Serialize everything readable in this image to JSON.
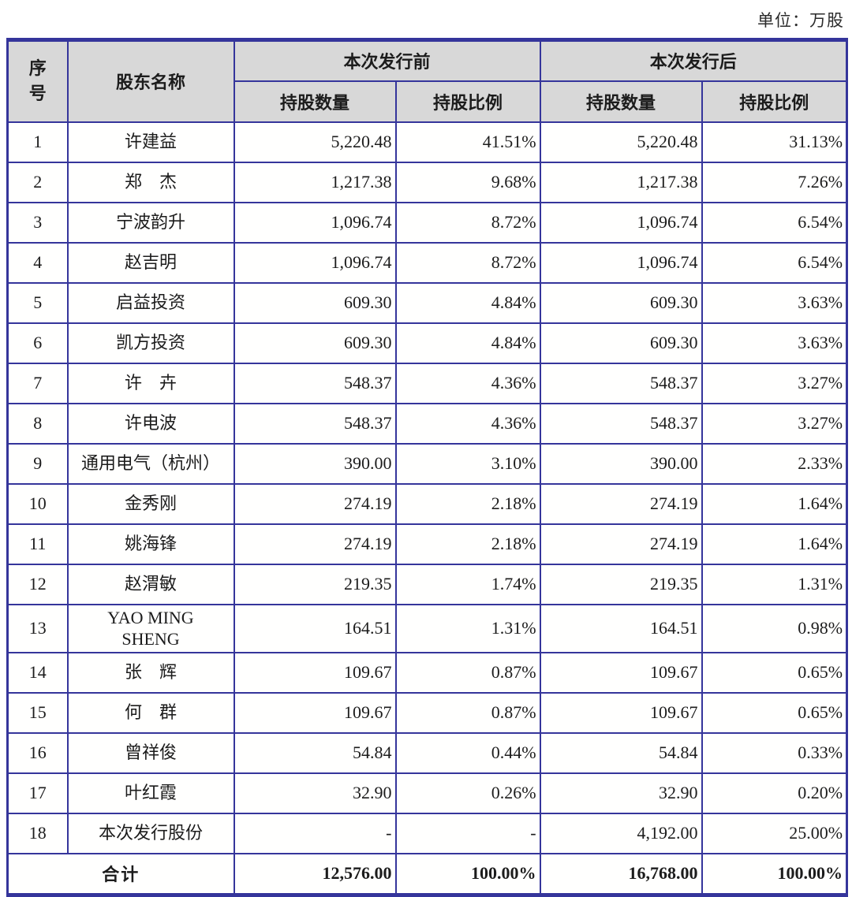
{
  "unit_label": "单位：万股",
  "colors": {
    "table_border": "#35359b",
    "header_bg": "#d8d8d8",
    "text": "#1c1c1c"
  },
  "table": {
    "header": {
      "seq": "序号",
      "shareholder": "股东名称",
      "pre_group": "本次发行前",
      "post_group": "本次发行后",
      "qty": "持股数量",
      "pct": "持股比例"
    },
    "rows": [
      {
        "seq": "1",
        "name": "许建益",
        "pre_qty": "5,220.48",
        "pre_pct": "41.51%",
        "post_qty": "5,220.48",
        "post_pct": "31.13%"
      },
      {
        "seq": "2",
        "name": "郑　杰",
        "pre_qty": "1,217.38",
        "pre_pct": "9.68%",
        "post_qty": "1,217.38",
        "post_pct": "7.26%"
      },
      {
        "seq": "3",
        "name": "宁波韵升",
        "pre_qty": "1,096.74",
        "pre_pct": "8.72%",
        "post_qty": "1,096.74",
        "post_pct": "6.54%"
      },
      {
        "seq": "4",
        "name": "赵吉明",
        "pre_qty": "1,096.74",
        "pre_pct": "8.72%",
        "post_qty": "1,096.74",
        "post_pct": "6.54%"
      },
      {
        "seq": "5",
        "name": "启益投资",
        "pre_qty": "609.30",
        "pre_pct": "4.84%",
        "post_qty": "609.30",
        "post_pct": "3.63%"
      },
      {
        "seq": "6",
        "name": "凯方投资",
        "pre_qty": "609.30",
        "pre_pct": "4.84%",
        "post_qty": "609.30",
        "post_pct": "3.63%"
      },
      {
        "seq": "7",
        "name": "许　卉",
        "pre_qty": "548.37",
        "pre_pct": "4.36%",
        "post_qty": "548.37",
        "post_pct": "3.27%"
      },
      {
        "seq": "8",
        "name": "许电波",
        "pre_qty": "548.37",
        "pre_pct": "4.36%",
        "post_qty": "548.37",
        "post_pct": "3.27%"
      },
      {
        "seq": "9",
        "name": "通用电气（杭州）",
        "pre_qty": "390.00",
        "pre_pct": "3.10%",
        "post_qty": "390.00",
        "post_pct": "2.33%"
      },
      {
        "seq": "10",
        "name": "金秀刚",
        "pre_qty": "274.19",
        "pre_pct": "2.18%",
        "post_qty": "274.19",
        "post_pct": "1.64%"
      },
      {
        "seq": "11",
        "name": "姚海锋",
        "pre_qty": "274.19",
        "pre_pct": "2.18%",
        "post_qty": "274.19",
        "post_pct": "1.64%"
      },
      {
        "seq": "12",
        "name": "赵渭敏",
        "pre_qty": "219.35",
        "pre_pct": "1.74%",
        "post_qty": "219.35",
        "post_pct": "1.31%"
      },
      {
        "seq": "13",
        "name": "YAO MING\nSHENG",
        "pre_qty": "164.51",
        "pre_pct": "1.31%",
        "post_qty": "164.51",
        "post_pct": "0.98%"
      },
      {
        "seq": "14",
        "name": "张　辉",
        "pre_qty": "109.67",
        "pre_pct": "0.87%",
        "post_qty": "109.67",
        "post_pct": "0.65%"
      },
      {
        "seq": "15",
        "name": "何　群",
        "pre_qty": "109.67",
        "pre_pct": "0.87%",
        "post_qty": "109.67",
        "post_pct": "0.65%"
      },
      {
        "seq": "16",
        "name": "曾祥俊",
        "pre_qty": "54.84",
        "pre_pct": "0.44%",
        "post_qty": "54.84",
        "post_pct": "0.33%"
      },
      {
        "seq": "17",
        "name": "叶红霞",
        "pre_qty": "32.90",
        "pre_pct": "0.26%",
        "post_qty": "32.90",
        "post_pct": "0.20%"
      },
      {
        "seq": "18",
        "name": "本次发行股份",
        "pre_qty": "-",
        "pre_pct": "-",
        "post_qty": "4,192.00",
        "post_pct": "25.00%"
      }
    ],
    "total": {
      "label": "合计",
      "pre_qty": "12,576.00",
      "pre_pct": "100.00%",
      "post_qty": "16,768.00",
      "post_pct": "100.00%"
    }
  }
}
